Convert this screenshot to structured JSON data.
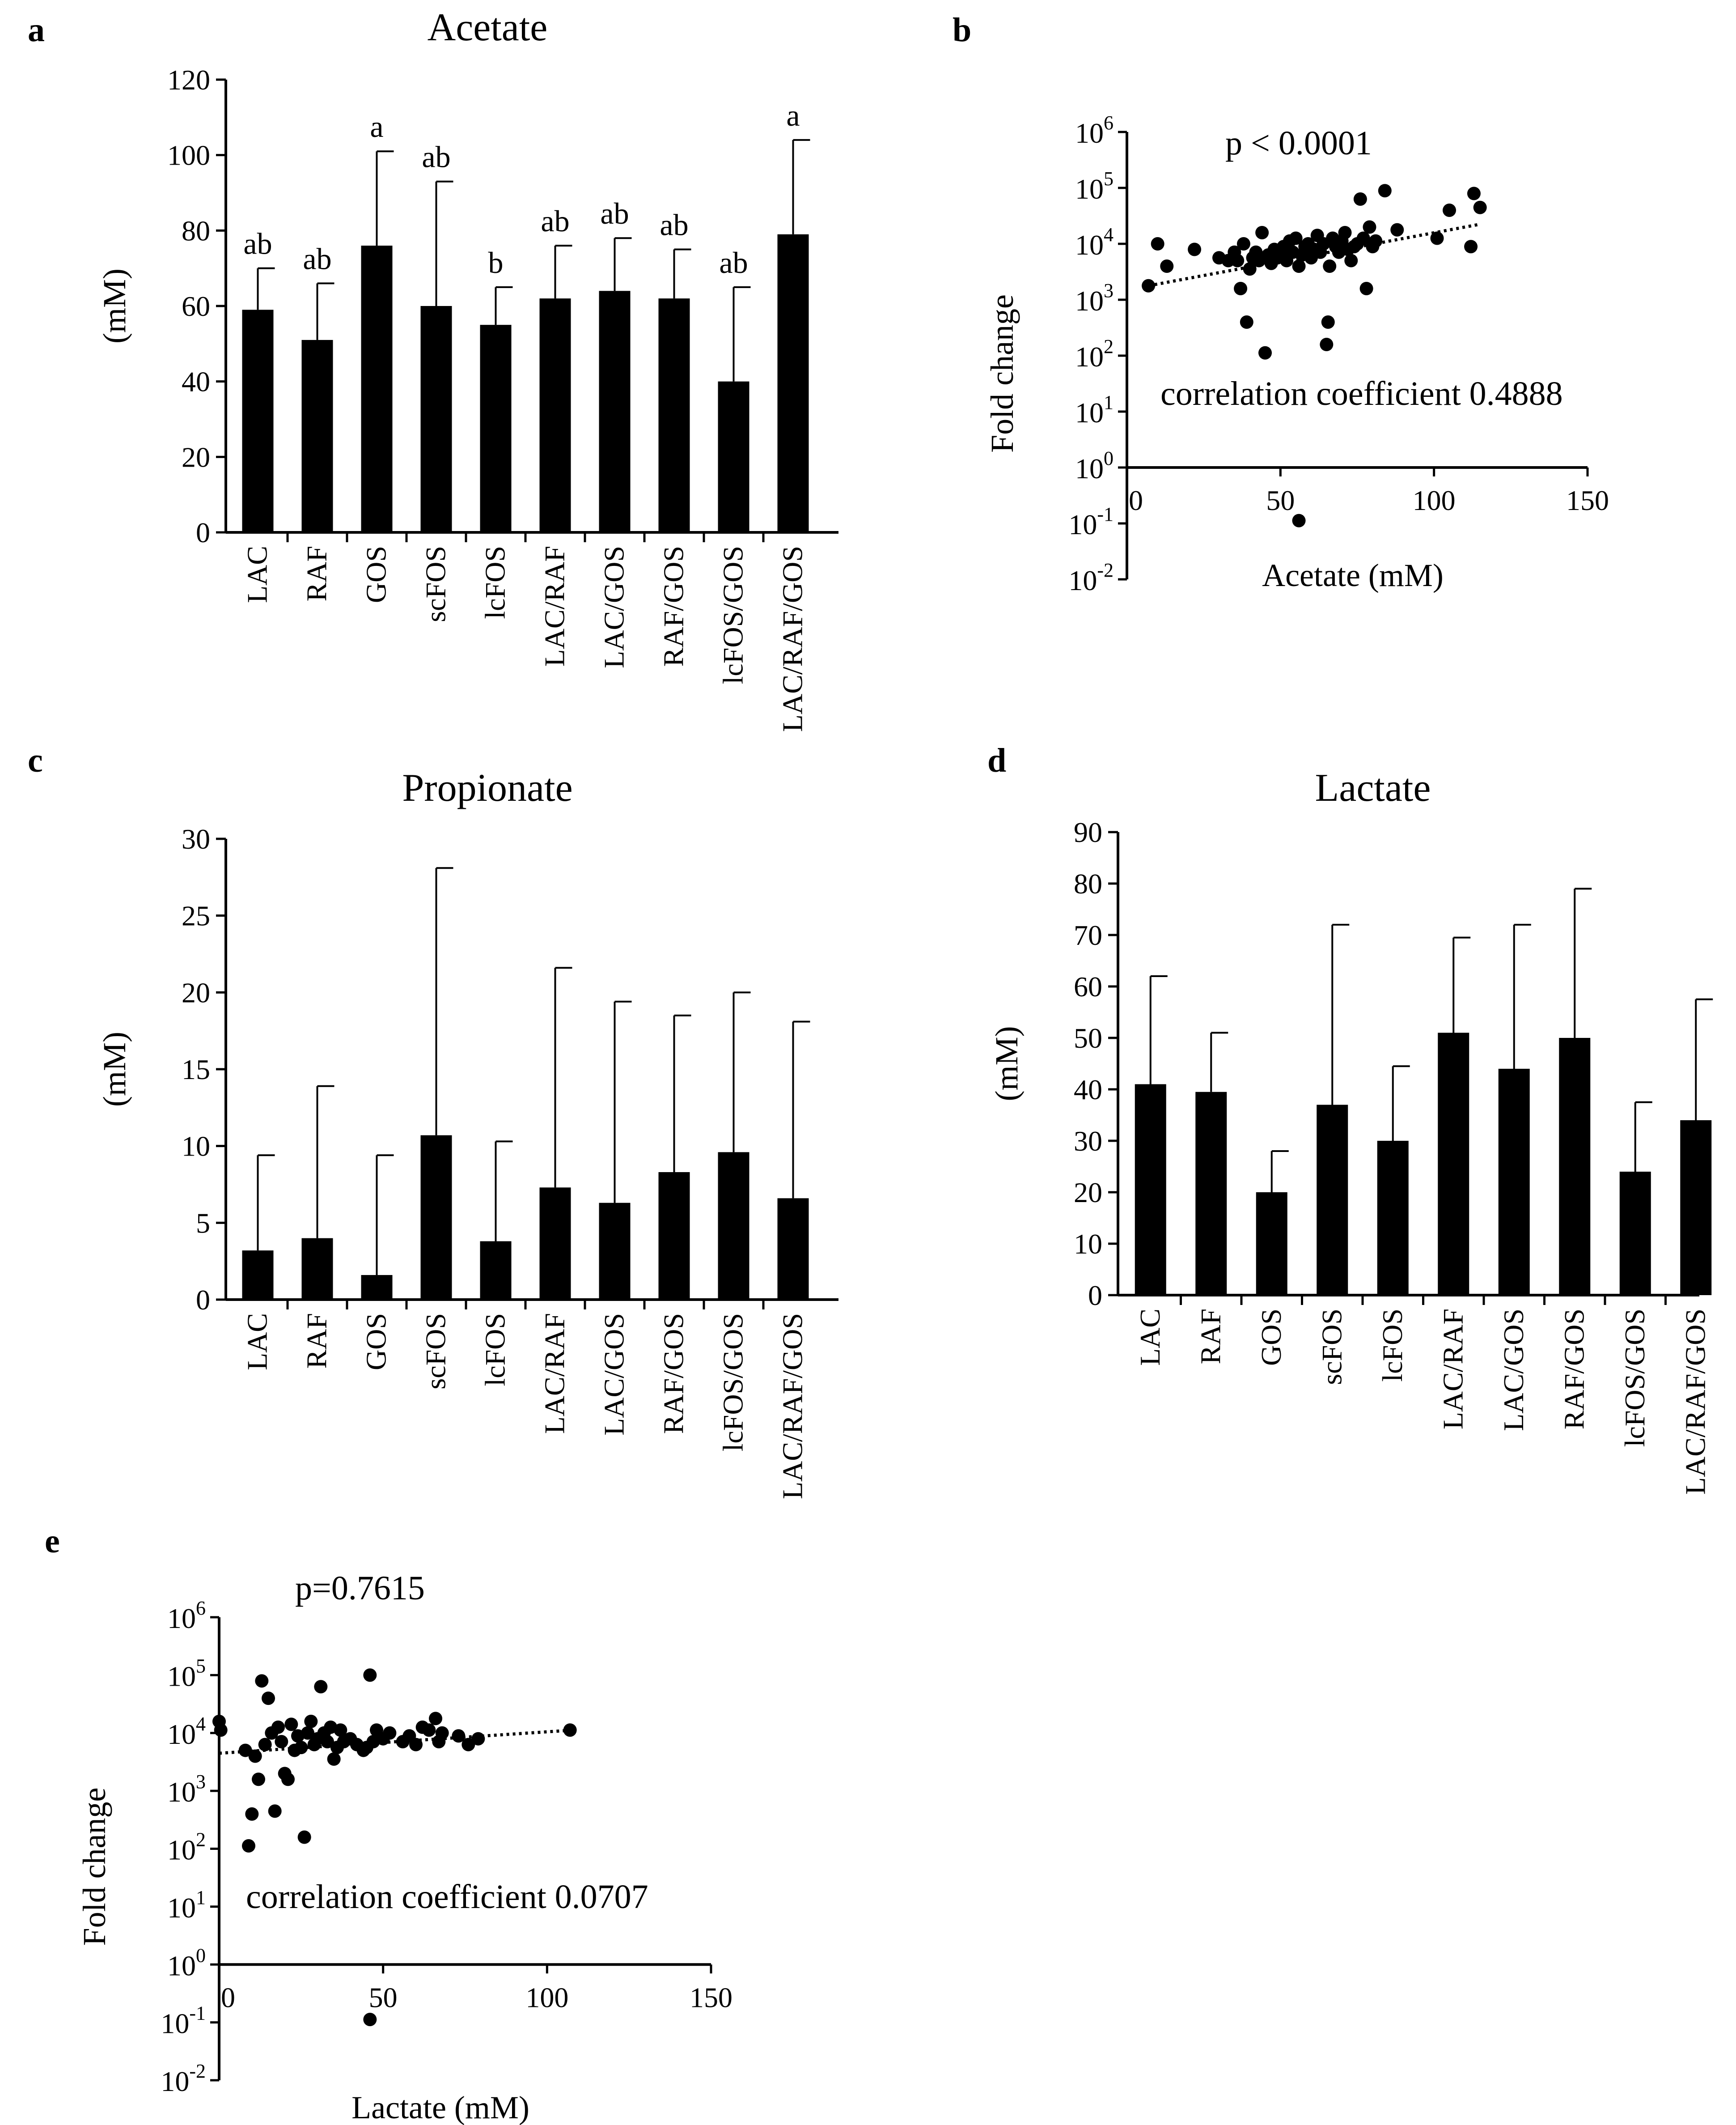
{
  "chart_data": [
    {
      "panel": "a",
      "type": "bar",
      "title": "Acetate",
      "ylabel": "(mM)",
      "xlabel": "",
      "ylim": [
        0,
        120
      ],
      "yticks": [
        0,
        20,
        40,
        60,
        80,
        100,
        120
      ],
      "categories": [
        "LAC",
        "RAF",
        "GOS",
        "scFOS",
        "lcFOS",
        "LAC/RAF",
        "LAC/GOS",
        "RAF/GOS",
        "lcFOS/GOS",
        "LAC/RAF/GOS"
      ],
      "values": [
        59,
        51,
        76,
        60,
        55,
        62,
        64,
        62,
        40,
        79
      ],
      "errors": [
        11,
        15,
        25,
        33,
        10,
        14,
        14,
        13,
        25,
        25
      ],
      "letters": [
        "ab",
        "ab",
        "a",
        "ab",
        "b",
        "ab",
        "ab",
        "ab",
        "ab",
        "a"
      ]
    },
    {
      "panel": "b",
      "type": "scatter",
      "title": "",
      "xlabel": "Acetate (mM)",
      "ylabel": "Fold change",
      "xlim": [
        0,
        150
      ],
      "xticks": [
        0,
        50,
        100,
        150
      ],
      "ylim_log10": [
        -2,
        6
      ],
      "ytick_exponents": [
        -2,
        -1,
        0,
        1,
        2,
        3,
        4,
        5,
        6
      ],
      "yscale": "log",
      "p_text": "p < 0.0001",
      "corr_text": "correlation coefficient 0.4888",
      "trend": [
        [
          7,
          3.25
        ],
        [
          115,
          4.35
        ]
      ],
      "points_log10": [
        [
          7,
          3.25
        ],
        [
          10,
          4.0
        ],
        [
          13,
          3.6
        ],
        [
          22,
          3.9
        ],
        [
          30,
          3.75
        ],
        [
          33,
          3.7
        ],
        [
          35,
          3.85
        ],
        [
          36,
          3.7
        ],
        [
          37,
          3.2
        ],
        [
          38,
          4.0
        ],
        [
          39,
          2.6
        ],
        [
          40,
          3.55
        ],
        [
          41,
          3.75
        ],
        [
          42,
          3.85
        ],
        [
          43,
          3.7
        ],
        [
          44,
          4.2
        ],
        [
          45,
          2.05
        ],
        [
          46,
          3.8
        ],
        [
          47,
          3.65
        ],
        [
          48,
          3.9
        ],
        [
          49,
          3.75
        ],
        [
          50,
          3.85
        ],
        [
          51,
          3.95
        ],
        [
          52,
          3.7
        ],
        [
          53,
          4.05
        ],
        [
          54,
          3.85
        ],
        [
          55,
          4.1
        ],
        [
          56,
          3.6
        ],
        [
          57,
          3.8
        ],
        [
          58,
          3.95
        ],
        [
          59,
          4.0
        ],
        [
          60,
          3.75
        ],
        [
          61,
          3.9
        ],
        [
          62,
          4.15
        ],
        [
          63,
          3.85
        ],
        [
          64,
          4.0
        ],
        [
          65,
          2.2
        ],
        [
          65.5,
          2.6
        ],
        [
          66,
          3.6
        ],
        [
          67,
          4.1
        ],
        [
          68,
          3.95
        ],
        [
          69,
          3.85
        ],
        [
          70,
          4.05
        ],
        [
          71,
          4.2
        ],
        [
          72,
          3.9
        ],
        [
          73,
          3.7
        ],
        [
          74,
          3.95
        ],
        [
          75,
          4.0
        ],
        [
          76,
          4.8
        ],
        [
          77,
          4.1
        ],
        [
          78,
          3.2
        ],
        [
          79,
          4.3
        ],
        [
          80,
          3.95
        ],
        [
          81,
          4.05
        ],
        [
          84,
          4.95
        ],
        [
          88,
          4.25
        ],
        [
          101,
          4.1
        ],
        [
          105,
          4.6
        ],
        [
          112,
          3.95
        ],
        [
          113,
          4.9
        ],
        [
          115,
          4.65
        ],
        [
          56,
          -0.95
        ]
      ]
    },
    {
      "panel": "c",
      "type": "bar",
      "title": "Propionate",
      "ylabel": "(mM)",
      "xlabel": "",
      "ylim": [
        0,
        30
      ],
      "yticks": [
        0,
        5,
        10,
        15,
        20,
        25,
        30
      ],
      "categories": [
        "LAC",
        "RAF",
        "GOS",
        "scFOS",
        "lcFOS",
        "LAC/RAF",
        "LAC/GOS",
        "RAF/GOS",
        "lcFOS/GOS",
        "LAC/RAF/GOS"
      ],
      "values": [
        3.2,
        4.0,
        1.6,
        10.7,
        3.8,
        7.3,
        6.3,
        8.3,
        9.6,
        6.6
      ],
      "errors": [
        6.2,
        9.9,
        7.8,
        17.4,
        6.5,
        14.3,
        13.1,
        10.2,
        10.4,
        11.5
      ]
    },
    {
      "panel": "d",
      "type": "bar",
      "title": "Lactate",
      "ylabel": "(mM)",
      "xlabel": "",
      "ylim": [
        0,
        90
      ],
      "yticks": [
        0,
        10,
        20,
        30,
        40,
        50,
        60,
        70,
        80,
        90
      ],
      "categories": [
        "LAC",
        "RAF",
        "GOS",
        "scFOS",
        "lcFOS",
        "LAC/RAF",
        "LAC/GOS",
        "RAF/GOS",
        "lcFOS/GOS",
        "LAC/RAF/GOS"
      ],
      "values": [
        41,
        39.5,
        20,
        37,
        30,
        51,
        44,
        50,
        24,
        34
      ],
      "errors": [
        21,
        11.5,
        8,
        35,
        14.5,
        18.5,
        28,
        29,
        13.5,
        23.5
      ]
    },
    {
      "panel": "e",
      "type": "scatter",
      "title": "",
      "xlabel": "Lactate (mM)",
      "ylabel": "Fold change",
      "xlim": [
        0,
        150
      ],
      "xticks": [
        0,
        50,
        100,
        150
      ],
      "ylim_log10": [
        -2,
        6
      ],
      "ytick_exponents": [
        -2,
        -1,
        0,
        1,
        2,
        3,
        4,
        5,
        6
      ],
      "yscale": "log",
      "p_text": "p=0.7615",
      "corr_text": "correlation coefficient 0.0707",
      "trend": [
        [
          0,
          3.65
        ],
        [
          108,
          4.05
        ]
      ],
      "points_log10": [
        [
          0,
          4.2
        ],
        [
          0.5,
          4.05
        ],
        [
          8,
          3.7
        ],
        [
          9,
          2.05
        ],
        [
          10,
          2.6
        ],
        [
          11,
          3.6
        ],
        [
          12,
          3.2
        ],
        [
          13,
          4.9
        ],
        [
          14,
          3.8
        ],
        [
          15,
          4.6
        ],
        [
          16,
          4.0
        ],
        [
          17,
          2.65
        ],
        [
          18,
          4.1
        ],
        [
          19,
          3.85
        ],
        [
          20,
          3.3
        ],
        [
          21,
          3.2
        ],
        [
          22,
          4.15
        ],
        [
          23,
          3.7
        ],
        [
          24,
          3.95
        ],
        [
          25,
          3.75
        ],
        [
          26,
          2.2
        ],
        [
          27,
          4.0
        ],
        [
          28,
          4.2
        ],
        [
          29,
          3.8
        ],
        [
          30,
          3.9
        ],
        [
          31,
          4.8
        ],
        [
          32,
          4.0
        ],
        [
          33,
          3.85
        ],
        [
          34,
          4.1
        ],
        [
          35,
          3.55
        ],
        [
          36,
          3.75
        ],
        [
          37,
          4.05
        ],
        [
          38,
          3.85
        ],
        [
          40,
          3.9
        ],
        [
          42,
          3.8
        ],
        [
          44,
          3.7
        ],
        [
          45,
          3.75
        ],
        [
          46,
          5.0
        ],
        [
          47,
          3.85
        ],
        [
          48,
          4.05
        ],
        [
          50,
          3.9
        ],
        [
          52,
          4.0
        ],
        [
          56,
          3.85
        ],
        [
          58,
          3.95
        ],
        [
          60,
          3.8
        ],
        [
          62,
          4.1
        ],
        [
          64,
          4.05
        ],
        [
          66,
          4.25
        ],
        [
          67,
          3.85
        ],
        [
          68,
          4.0
        ],
        [
          73,
          3.95
        ],
        [
          76,
          3.8
        ],
        [
          79,
          3.9
        ],
        [
          107,
          4.05
        ],
        [
          46,
          -0.95
        ]
      ]
    }
  ]
}
